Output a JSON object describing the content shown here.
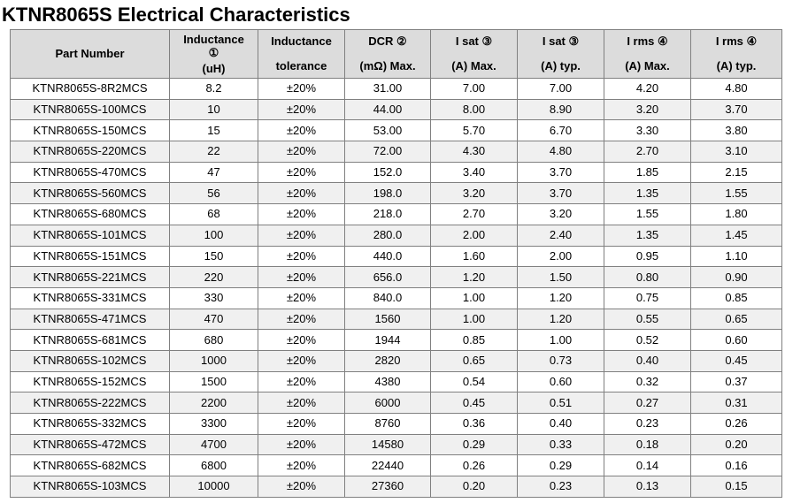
{
  "title": "KTNR8065S Electrical Characteristics",
  "headers": [
    {
      "line1": "Part Number",
      "line2": ""
    },
    {
      "line1": "Inductance",
      "line1b": "①",
      "line2": "(uH)"
    },
    {
      "line1": "Inductance",
      "line2": "tolerance"
    },
    {
      "line1": "DCR ②",
      "line2": "(mΩ) Max."
    },
    {
      "line1": "I sat ③",
      "line2": "(A) Max."
    },
    {
      "line1": "I sat ③",
      "line2": "(A) typ."
    },
    {
      "line1": "I rms ④",
      "line2": "(A) Max."
    },
    {
      "line1": "I rms ④",
      "line2": "(A) typ."
    }
  ],
  "rows": [
    [
      "KTNR8065S-8R2MCS",
      "8.2",
      "±20%",
      "31.00",
      "7.00",
      "7.00",
      "4.20",
      "4.80"
    ],
    [
      "KTNR8065S-100MCS",
      "10",
      "±20%",
      "44.00",
      "8.00",
      "8.90",
      "3.20",
      "3.70"
    ],
    [
      "KTNR8065S-150MCS",
      "15",
      "±20%",
      "53.00",
      "5.70",
      "6.70",
      "3.30",
      "3.80"
    ],
    [
      "KTNR8065S-220MCS",
      "22",
      "±20%",
      "72.00",
      "4.30",
      "4.80",
      "2.70",
      "3.10"
    ],
    [
      "KTNR8065S-470MCS",
      "47",
      "±20%",
      "152.0",
      "3.40",
      "3.70",
      "1.85",
      "2.15"
    ],
    [
      "KTNR8065S-560MCS",
      "56",
      "±20%",
      "198.0",
      "3.20",
      "3.70",
      "1.35",
      "1.55"
    ],
    [
      "KTNR8065S-680MCS",
      "68",
      "±20%",
      "218.0",
      "2.70",
      "3.20",
      "1.55",
      "1.80"
    ],
    [
      "KTNR8065S-101MCS",
      "100",
      "±20%",
      "280.0",
      "2.00",
      "2.40",
      "1.35",
      "1.45"
    ],
    [
      "KTNR8065S-151MCS",
      "150",
      "±20%",
      "440.0",
      "1.60",
      "2.00",
      "0.95",
      "1.10"
    ],
    [
      "KTNR8065S-221MCS",
      "220",
      "±20%",
      "656.0",
      "1.20",
      "1.50",
      "0.80",
      "0.90"
    ],
    [
      "KTNR8065S-331MCS",
      "330",
      "±20%",
      "840.0",
      "1.00",
      "1.20",
      "0.75",
      "0.85"
    ],
    [
      "KTNR8065S-471MCS",
      "470",
      "±20%",
      "1560",
      "1.00",
      "1.20",
      "0.55",
      "0.65"
    ],
    [
      "KTNR8065S-681MCS",
      "680",
      "±20%",
      "1944",
      "0.85",
      "1.00",
      "0.52",
      "0.60"
    ],
    [
      "KTNR8065S-102MCS",
      "1000",
      "±20%",
      "2820",
      "0.65",
      "0.73",
      "0.40",
      "0.45"
    ],
    [
      "KTNR8065S-152MCS",
      "1500",
      "±20%",
      "4380",
      "0.54",
      "0.60",
      "0.32",
      "0.37"
    ],
    [
      "KTNR8065S-222MCS",
      "2200",
      "±20%",
      "6000",
      "0.45",
      "0.51",
      "0.27",
      "0.31"
    ],
    [
      "KTNR8065S-332MCS",
      "3300",
      "±20%",
      "8760",
      "0.36",
      "0.40",
      "0.23",
      "0.26"
    ],
    [
      "KTNR8065S-472MCS",
      "4700",
      "±20%",
      "14580",
      "0.29",
      "0.33",
      "0.18",
      "0.20"
    ],
    [
      "KTNR8065S-682MCS",
      "6800",
      "±20%",
      "22440",
      "0.26",
      "0.29",
      "0.14",
      "0.16"
    ],
    [
      "KTNR8065S-103MCS",
      "10000",
      "±20%",
      "27360",
      "0.20",
      "0.23",
      "0.13",
      "0.15"
    ]
  ]
}
